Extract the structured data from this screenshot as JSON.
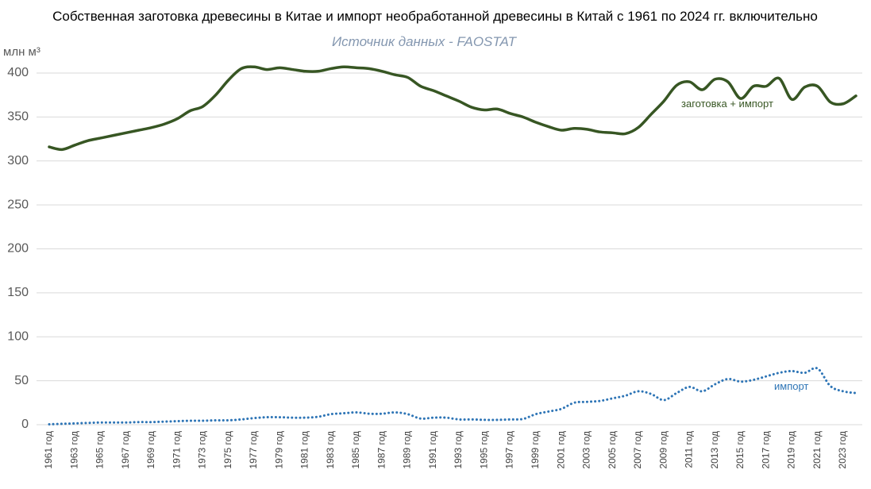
{
  "chart_data": {
    "type": "line",
    "title": "Собственная заготовка древесины в Китае и импорт необработанной древесины в Китай с 1961 по 2024 гг. включительно",
    "subtitle": "Источник данных - FAOSTAT",
    "y_label": "млн м³",
    "categories": [
      "1961 год",
      null,
      "1963 год",
      null,
      "1965 год",
      null,
      "1967 год",
      null,
      "1969 год",
      null,
      "1971 год",
      null,
      "1973 год",
      null,
      "1975 год",
      null,
      "1977 год",
      null,
      "1979 год",
      null,
      "1981 год",
      null,
      "1983 год",
      null,
      "1985 год",
      null,
      "1987 год",
      null,
      "1989 год",
      null,
      "1991 год",
      null,
      "1993 год",
      null,
      "1995 год",
      null,
      "1997 год",
      null,
      "1999 год",
      null,
      "2001 год",
      null,
      "2003 год",
      null,
      "2005 год",
      null,
      "2007 год",
      null,
      "2009 год",
      null,
      "2011 год",
      null,
      "2013 год",
      null,
      "2015 год",
      null,
      "2017 год",
      null,
      "2019 год",
      null,
      "2021 год",
      null,
      "2023 год",
      null
    ],
    "series": [
      {
        "name": "заготовка + импорт",
        "color": "#375623",
        "dash": "solid",
        "values": [
          316,
          313,
          318,
          323,
          326,
          329,
          332,
          335,
          338,
          342,
          348,
          357,
          362,
          375,
          392,
          405,
          407,
          404,
          406,
          404,
          402,
          402,
          405,
          407,
          406,
          405,
          402,
          398,
          395,
          385,
          380,
          374,
          368,
          361,
          358,
          359,
          354,
          350,
          344,
          339,
          335,
          337,
          336,
          333,
          332,
          331,
          338,
          353,
          368,
          386,
          390,
          381,
          393,
          390,
          371,
          385,
          385,
          394,
          370,
          384,
          385,
          367,
          365,
          374
        ]
      },
      {
        "name": "импорт",
        "color": "#2e75b6",
        "dash": "dotted",
        "values": [
          0.5,
          1,
          1.5,
          2,
          2.5,
          2.5,
          2.5,
          3,
          3,
          3.5,
          4,
          4.5,
          4.5,
          5,
          5,
          6,
          7.5,
          8.5,
          8.5,
          8,
          8,
          9,
          12,
          13,
          14,
          12.5,
          12.5,
          14,
          12,
          7,
          8,
          8,
          6,
          6,
          5.5,
          5.5,
          6,
          6.5,
          12,
          15,
          18,
          25,
          26,
          27,
          30,
          33,
          38,
          35,
          28,
          36,
          43,
          38,
          46,
          52,
          49,
          51,
          55,
          59,
          61,
          59,
          64,
          44,
          38,
          36
        ]
      }
    ],
    "ylim": [
      0,
      400
    ],
    "yticks": [
      0,
      50,
      100,
      150,
      200,
      250,
      300,
      350,
      400
    ],
    "grid": true
  }
}
